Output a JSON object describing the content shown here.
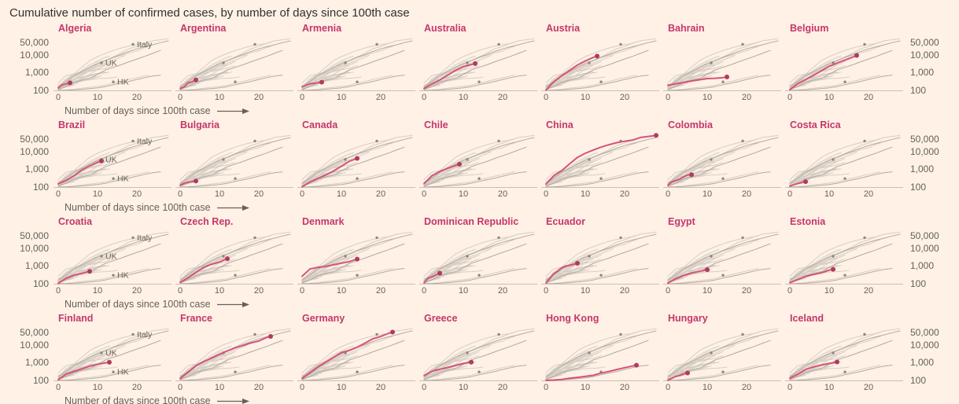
{
  "title": "Cumulative number of confirmed cases, by number of days since 100th case",
  "colors": {
    "background": "#FFF1E5",
    "highlight_line": "#D5537B",
    "highlight_dot": "#B23A60",
    "country_label": "#C5366B",
    "spaghetti": "#D6CEC4",
    "reference_line": "#B3AAA0",
    "reference_dot": "#8F867C",
    "axis_text": "#66605C",
    "axis_line": "#C9C0B6",
    "title_text": "#33302E"
  },
  "chart_data": {
    "type": "line",
    "small_multiples": true,
    "grid": {
      "rows": 4,
      "cols": 7
    },
    "title": "Cumulative number of confirmed cases, by number of days since 100th case",
    "x_caption": "Number of days since 100th case",
    "x_ticks": [
      0,
      10,
      20
    ],
    "x_range": [
      0,
      28
    ],
    "y_scale": "log",
    "y_ticks": [
      {
        "label": "50,000",
        "value": 50000
      },
      {
        "label": "10,000",
        "value": 10000
      },
      {
        "label": "1,000",
        "value": 1000
      },
      {
        "label": "100",
        "value": 100
      }
    ],
    "y_range": [
      100,
      89000
    ],
    "legend_position": "inline labels in first column panels",
    "references": [
      {
        "name": "Italy",
        "label_anchor": [
          19,
          38000
        ],
        "points": [
          [
            0,
            155
          ],
          [
            2,
            322
          ],
          [
            4,
            655
          ],
          [
            6,
            1128
          ],
          [
            8,
            2036
          ],
          [
            10,
            3089
          ],
          [
            12,
            4636
          ],
          [
            14,
            7375
          ],
          [
            16,
            10149
          ],
          [
            18,
            15113
          ],
          [
            20,
            21157
          ],
          [
            22,
            27980
          ],
          [
            24,
            35713
          ],
          [
            26,
            47021
          ],
          [
            28,
            59138
          ]
        ]
      },
      {
        "name": "UK",
        "label_anchor": [
          11,
          3500
        ],
        "points": [
          [
            0,
            116
          ],
          [
            2,
            164
          ],
          [
            4,
            278
          ],
          [
            6,
            373
          ],
          [
            8,
            460
          ],
          [
            10,
            802
          ],
          [
            12,
            1396
          ],
          [
            14,
            1960
          ],
          [
            16,
            2712
          ],
          [
            18,
            4023
          ],
          [
            20,
            5687
          ],
          [
            22,
            8081
          ],
          [
            24,
            11812
          ],
          [
            26,
            17312
          ]
        ]
      },
      {
        "name": "HK",
        "label_anchor": [
          14,
          300
        ],
        "points": [
          [
            0,
            100
          ],
          [
            2,
            102
          ],
          [
            4,
            108
          ],
          [
            6,
            115
          ],
          [
            8,
            126
          ],
          [
            10,
            140
          ],
          [
            12,
            162
          ],
          [
            14,
            208
          ],
          [
            16,
            256
          ],
          [
            18,
            317
          ],
          [
            20,
            410
          ],
          [
            22,
            518
          ],
          [
            24,
            641
          ],
          [
            26,
            715
          ]
        ]
      }
    ],
    "panels": [
      {
        "country": "Algeria",
        "points": [
          [
            0,
            139
          ],
          [
            1,
            201
          ],
          [
            2,
            230
          ],
          [
            3,
            264
          ]
        ]
      },
      {
        "country": "Argentina",
        "points": [
          [
            0,
            128
          ],
          [
            1,
            158
          ],
          [
            2,
            266
          ],
          [
            3,
            301
          ],
          [
            4,
            387
          ]
        ]
      },
      {
        "country": "Armenia",
        "points": [
          [
            0,
            160
          ],
          [
            1,
            194
          ],
          [
            2,
            235
          ],
          [
            3,
            249
          ],
          [
            4,
            265
          ],
          [
            5,
            290
          ]
        ]
      },
      {
        "country": "Australia",
        "points": [
          [
            0,
            128
          ],
          [
            2,
            230
          ],
          [
            4,
            377
          ],
          [
            6,
            709
          ],
          [
            8,
            1314
          ],
          [
            10,
            2144
          ],
          [
            12,
            2800
          ],
          [
            13,
            3166
          ]
        ]
      },
      {
        "country": "Austria",
        "points": [
          [
            0,
            104
          ],
          [
            2,
            302
          ],
          [
            4,
            655
          ],
          [
            6,
            1332
          ],
          [
            8,
            2649
          ],
          [
            10,
            4486
          ],
          [
            12,
            7029
          ],
          [
            13,
            8291
          ]
        ]
      },
      {
        "country": "Bahrain",
        "points": [
          [
            0,
            195
          ],
          [
            2,
            235
          ],
          [
            4,
            278
          ],
          [
            6,
            334
          ],
          [
            8,
            392
          ],
          [
            10,
            458
          ],
          [
            12,
            476
          ],
          [
            14,
            515
          ],
          [
            15,
            567
          ]
        ]
      },
      {
        "country": "Belgium",
        "points": [
          [
            0,
            109
          ],
          [
            2,
            239
          ],
          [
            4,
            399
          ],
          [
            6,
            689
          ],
          [
            8,
            1243
          ],
          [
            10,
            2257
          ],
          [
            12,
            3401
          ],
          [
            14,
            4937
          ],
          [
            16,
            7284
          ],
          [
            17,
            9134
          ]
        ]
      },
      {
        "country": "Brazil",
        "points": [
          [
            0,
            151
          ],
          [
            2,
            234
          ],
          [
            4,
            428
          ],
          [
            6,
            904
          ],
          [
            8,
            1546
          ],
          [
            10,
            2433
          ],
          [
            11,
            2915
          ]
        ]
      },
      {
        "country": "Bulgaria",
        "points": [
          [
            0,
            127
          ],
          [
            1,
            163
          ],
          [
            2,
            187
          ],
          [
            3,
            201
          ],
          [
            4,
            218
          ]
        ]
      },
      {
        "country": "Canada",
        "points": [
          [
            0,
            103
          ],
          [
            2,
            193
          ],
          [
            4,
            304
          ],
          [
            6,
            478
          ],
          [
            8,
            800
          ],
          [
            10,
            1469
          ],
          [
            12,
            2792
          ],
          [
            14,
            4043
          ]
        ]
      },
      {
        "country": "Chile",
        "points": [
          [
            0,
            155
          ],
          [
            2,
            434
          ],
          [
            4,
            746
          ],
          [
            6,
            1142
          ],
          [
            8,
            1610
          ],
          [
            9,
            1909
          ]
        ]
      },
      {
        "country": "China",
        "points": [
          [
            0,
            148
          ],
          [
            2,
            440
          ],
          [
            4,
            830
          ],
          [
            6,
            2000
          ],
          [
            8,
            4600
          ],
          [
            10,
            7800
          ],
          [
            12,
            11900
          ],
          [
            14,
            17200
          ],
          [
            16,
            23700
          ],
          [
            18,
            30600
          ],
          [
            20,
            36800
          ],
          [
            22,
            42700
          ],
          [
            24,
            59900
          ],
          [
            26,
            68500
          ],
          [
            28,
            78600
          ]
        ]
      },
      {
        "country": "Colombia",
        "points": [
          [
            0,
            128
          ],
          [
            1,
            196
          ],
          [
            2,
            231
          ],
          [
            3,
            277
          ],
          [
            4,
            378
          ],
          [
            5,
            470
          ],
          [
            6,
            491
          ]
        ]
      },
      {
        "country": "Costa Rica",
        "points": [
          [
            0,
            113
          ],
          [
            1,
            134
          ],
          [
            2,
            158
          ],
          [
            3,
            177
          ],
          [
            4,
            201
          ]
        ]
      },
      {
        "country": "Croatia",
        "points": [
          [
            0,
            105
          ],
          [
            2,
            206
          ],
          [
            4,
            306
          ],
          [
            6,
            382
          ],
          [
            7,
            442
          ],
          [
            8,
            495
          ]
        ]
      },
      {
        "country": "Czech Rep.",
        "points": [
          [
            0,
            120
          ],
          [
            2,
            214
          ],
          [
            4,
            434
          ],
          [
            6,
            833
          ],
          [
            8,
            1236
          ],
          [
            10,
            1654
          ],
          [
            12,
            2541
          ]
        ]
      },
      {
        "country": "Denmark",
        "points": [
          [
            0,
            262
          ],
          [
            2,
            674
          ],
          [
            4,
            836
          ],
          [
            6,
            933
          ],
          [
            8,
            1151
          ],
          [
            10,
            1420
          ],
          [
            12,
            1724
          ],
          [
            13,
            2046
          ],
          [
            14,
            2395
          ]
        ]
      },
      {
        "country": "Dominican Republic",
        "points": [
          [
            0,
            112
          ],
          [
            1,
            202
          ],
          [
            2,
            245
          ],
          [
            3,
            312
          ],
          [
            4,
            392
          ]
        ]
      },
      {
        "country": "Ecuador",
        "points": [
          [
            0,
            111
          ],
          [
            1,
            199
          ],
          [
            2,
            367
          ],
          [
            3,
            506
          ],
          [
            4,
            789
          ],
          [
            5,
            981
          ],
          [
            6,
            1082
          ],
          [
            7,
            1211
          ],
          [
            8,
            1403
          ]
        ]
      },
      {
        "country": "Egypt",
        "points": [
          [
            0,
            110
          ],
          [
            2,
            196
          ],
          [
            4,
            294
          ],
          [
            6,
            402
          ],
          [
            8,
            495
          ],
          [
            10,
            609
          ]
        ]
      },
      {
        "country": "Estonia",
        "points": [
          [
            0,
            115
          ],
          [
            2,
            171
          ],
          [
            4,
            258
          ],
          [
            6,
            326
          ],
          [
            8,
            404
          ],
          [
            10,
            575
          ],
          [
            11,
            645
          ]
        ]
      },
      {
        "country": "Finland",
        "points": [
          [
            0,
            109
          ],
          [
            2,
            225
          ],
          [
            4,
            321
          ],
          [
            6,
            450
          ],
          [
            8,
            626
          ],
          [
            10,
            792
          ],
          [
            12,
            958
          ],
          [
            13,
            1041
          ]
        ]
      },
      {
        "country": "France",
        "points": [
          [
            0,
            130
          ],
          [
            2,
            285
          ],
          [
            4,
            656
          ],
          [
            6,
            1136
          ],
          [
            8,
            1784
          ],
          [
            10,
            2876
          ],
          [
            12,
            4469
          ],
          [
            14,
            6633
          ],
          [
            16,
            9043
          ],
          [
            18,
            12612
          ],
          [
            20,
            16018
          ],
          [
            22,
            25233
          ],
          [
            23,
            29155
          ]
        ]
      },
      {
        "country": "Germany",
        "points": [
          [
            0,
            130
          ],
          [
            2,
            262
          ],
          [
            4,
            545
          ],
          [
            6,
            1040
          ],
          [
            8,
            1966
          ],
          [
            10,
            3675
          ],
          [
            12,
            4838
          ],
          [
            14,
            7272
          ],
          [
            16,
            12327
          ],
          [
            18,
            21463
          ],
          [
            20,
            29056
          ],
          [
            22,
            43938
          ],
          [
            23,
            50871
          ]
        ]
      },
      {
        "country": "Greece",
        "points": [
          [
            0,
            190
          ],
          [
            2,
            331
          ],
          [
            4,
            418
          ],
          [
            6,
            530
          ],
          [
            8,
            695
          ],
          [
            10,
            892
          ],
          [
            12,
            1061
          ]
        ]
      },
      {
        "country": "Hong Kong",
        "points": [
          [
            0,
            100
          ],
          [
            2,
            105
          ],
          [
            4,
            114
          ],
          [
            6,
            131
          ],
          [
            8,
            149
          ],
          [
            10,
            167
          ],
          [
            12,
            193
          ],
          [
            14,
            256
          ],
          [
            16,
            317
          ],
          [
            18,
            410
          ],
          [
            20,
            518
          ],
          [
            22,
            641
          ],
          [
            23,
            714
          ]
        ]
      },
      {
        "country": "Hungary",
        "points": [
          [
            0,
            103
          ],
          [
            1,
            131
          ],
          [
            2,
            167
          ],
          [
            3,
            187
          ],
          [
            4,
            226
          ],
          [
            5,
            261
          ]
        ]
      },
      {
        "country": "Iceland",
        "points": [
          [
            0,
            134
          ],
          [
            2,
            220
          ],
          [
            4,
            409
          ],
          [
            6,
            568
          ],
          [
            8,
            737
          ],
          [
            10,
            890
          ],
          [
            12,
            1086
          ]
        ]
      }
    ]
  }
}
